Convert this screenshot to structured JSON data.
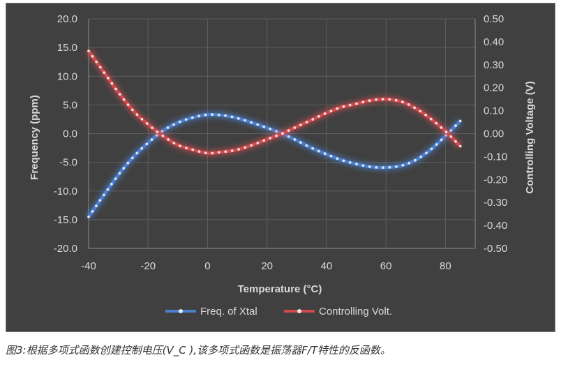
{
  "chart_data": {
    "type": "line",
    "xlabel": "Temperature (°C)",
    "ylabel": "Frequency (ppm)",
    "y2label": "Controlling Voltage (V)",
    "xlim": [
      -40,
      90
    ],
    "ylim": [
      -20,
      20
    ],
    "y2lim": [
      -0.5,
      0.5
    ],
    "x_ticks": [
      "-40",
      "-20",
      "0",
      "20",
      "40",
      "60",
      "80"
    ],
    "y_ticks": [
      "20.0",
      "15.0",
      "10.0",
      "5.0",
      "0.0",
      "-5.0",
      "-10.0",
      "-15.0",
      "-20.0"
    ],
    "y2_ticks": [
      "0.50",
      "0.40",
      "0.30",
      "0.20",
      "0.10",
      "0.00",
      "-0.10",
      "-0.20",
      "-0.30",
      "-0.40",
      "-0.50"
    ],
    "grid": true,
    "legend_position": "bottom",
    "series": [
      {
        "name": "Freq. of Xtal",
        "axis": "left",
        "color": "#4a7fd0",
        "x": [
          -40,
          -35,
          -30,
          -25,
          -20,
          -15,
          -10,
          -5,
          0,
          5,
          10,
          15,
          20,
          25,
          30,
          35,
          40,
          45,
          50,
          55,
          60,
          65,
          70,
          75,
          80,
          85
        ],
        "values": [
          -14.5,
          -10.8,
          -7.2,
          -4.1,
          -1.6,
          0.5,
          1.9,
          2.8,
          3.3,
          3.2,
          2.7,
          1.9,
          1.0,
          0.0,
          -1.2,
          -2.5,
          -3.6,
          -4.6,
          -5.3,
          -5.8,
          -5.9,
          -5.6,
          -4.6,
          -2.8,
          -0.4,
          2.2
        ]
      },
      {
        "name": "Controlling Volt.",
        "axis": "right",
        "color": "#d14a4e",
        "x": [
          -40,
          -35,
          -30,
          -25,
          -20,
          -15,
          -10,
          -5,
          0,
          5,
          10,
          15,
          20,
          25,
          30,
          35,
          40,
          45,
          50,
          55,
          60,
          65,
          70,
          75,
          80,
          85
        ],
        "values": [
          0.36,
          0.27,
          0.18,
          0.1,
          0.04,
          -0.01,
          -0.05,
          -0.07,
          -0.085,
          -0.08,
          -0.07,
          -0.05,
          -0.025,
          0.0,
          0.03,
          0.06,
          0.09,
          0.115,
          0.13,
          0.145,
          0.15,
          0.14,
          0.11,
          0.065,
          0.01,
          -0.055
        ]
      }
    ]
  },
  "colors": {
    "background": "#404040",
    "axis_text": "#d9d9d9",
    "grid": "#5e5e5e"
  },
  "caption": "图3:根据多项式函数创建控制电压(V_C ),该多项式函数是振荡器F/T特性的反函数。"
}
